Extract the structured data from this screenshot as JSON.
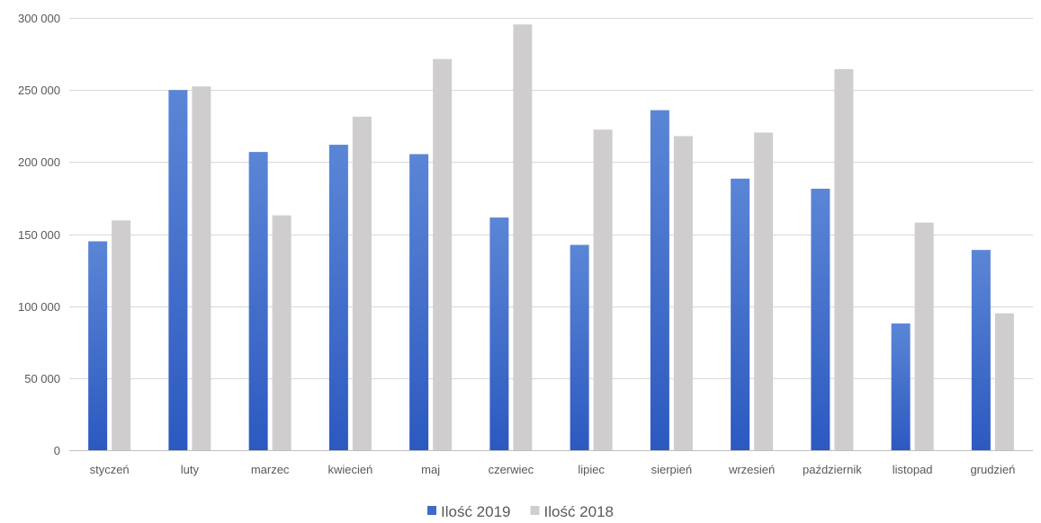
{
  "chart_data": {
    "type": "bar",
    "categories": [
      "styczeń",
      "luty",
      "marzec",
      "kwiecień",
      "maj",
      "czerwiec",
      "lipiec",
      "sierpień",
      "wrzesień",
      "październik",
      "listopad",
      "grudzień"
    ],
    "series": [
      {
        "name": "Ilość 2019",
        "color": "#3d6bc8",
        "values": [
          145000,
          250000,
          207000,
          212000,
          205500,
          161500,
          142500,
          236000,
          188500,
          181500,
          88000,
          139000
        ]
      },
      {
        "name": "Ilość 2018",
        "color": "#cfcdcd",
        "values": [
          159500,
          252500,
          163000,
          231500,
          271500,
          295500,
          222500,
          218000,
          220500,
          264500,
          158000,
          95000
        ]
      }
    ],
    "yticks": [
      "0",
      "50 000",
      "100 000",
      "150 000",
      "200 000",
      "250 000",
      "300 000"
    ],
    "ylim": [
      0,
      300000
    ],
    "grid": true,
    "legend_position": "bottom"
  }
}
